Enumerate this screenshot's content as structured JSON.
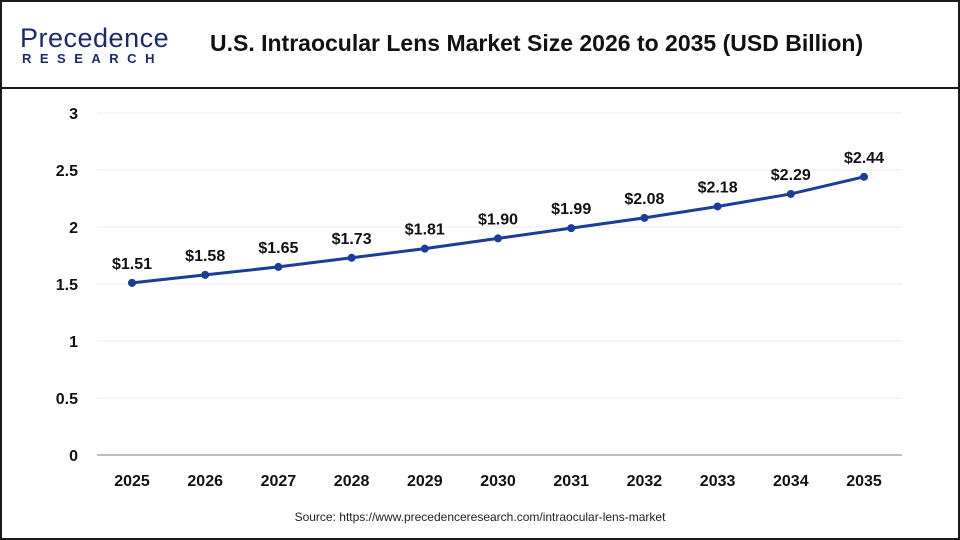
{
  "header": {
    "logo_line1": "Precedence",
    "logo_line2": "RESEARCH",
    "title": "U.S. Intraocular Lens Market Size 2026 to 2035 (USD Billion)"
  },
  "source": "Source: https://www.precedenceresearch.com/intraocular-lens-market",
  "chart_data": {
    "type": "line",
    "title": "U.S. Intraocular Lens Market Size 2026 to 2035 (USD Billion)",
    "categories": [
      "2025",
      "2026",
      "2027",
      "2028",
      "2029",
      "2030",
      "2031",
      "2032",
      "2033",
      "2034",
      "2035"
    ],
    "values": [
      1.51,
      1.58,
      1.65,
      1.73,
      1.81,
      1.9,
      1.99,
      2.08,
      2.18,
      2.29,
      2.44
    ],
    "data_labels": [
      "$1.51",
      "$1.58",
      "$1.65",
      "$1.73",
      "$1.81",
      "$1.90",
      "$1.99",
      "$2.08",
      "$2.18",
      "$2.29",
      "$2.44"
    ],
    "yticks": [
      "0",
      "0.5",
      "1",
      "1.5",
      "2",
      "2.5",
      "3"
    ],
    "ylim": [
      0,
      3
    ],
    "grid": true,
    "line_color": "#1a3d9c"
  }
}
